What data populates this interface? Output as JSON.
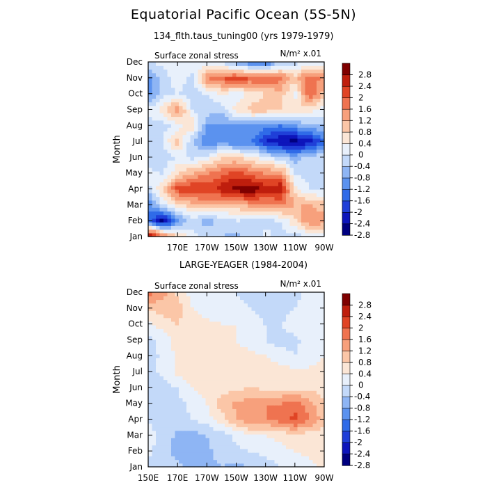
{
  "title": "Equatorial Pacific Ocean (5S-5N)",
  "panels": [
    {
      "subtitle": "134_flth.taus_tuning00 (yrs 1979-1979)",
      "left_label": "Surface zonal stress",
      "right_label": "N/m² x.01"
    },
    {
      "subtitle": "LARGE-YEAGER (1984-2004)",
      "left_label": "Surface zonal stress",
      "right_label": "N/m² x.01"
    }
  ],
  "chart_data": [
    {
      "type": "heatmap",
      "title": "134_flth.taus_tuning00 (yrs 1979-1979)",
      "variable": "Surface zonal stress",
      "units": "N/m² x.01",
      "ylabel": "Month",
      "x_ticks": [
        "",
        "170E",
        "170W",
        "150W",
        "130W",
        "110W",
        "90W"
      ],
      "x_range_lon": [
        150,
        270
      ],
      "y_ticks": [
        "Jan",
        "Feb",
        "Mar",
        "Apr",
        "May",
        "Jun",
        "Jul",
        "Aug",
        "Sep",
        "Oct",
        "Nov",
        "Dec"
      ],
      "colorbar_levels": [
        -2.8,
        -2.4,
        -2,
        -1.6,
        -1.2,
        -0.8,
        -0.4,
        0,
        0.4,
        0.8,
        1.2,
        1.6,
        2,
        2.4,
        2.8
      ],
      "colorbar_labels": [
        "2.8",
        "2.4",
        "2",
        "1.6",
        "1.2",
        "0.8",
        "0.4",
        "0",
        "-0.4",
        "-0.8",
        "-1.2",
        "-1.6",
        "-2",
        "-2.4",
        "-2.8"
      ],
      "lons": [
        150,
        160,
        170,
        180,
        190,
        200,
        210,
        220,
        230,
        240,
        250,
        260,
        270
      ],
      "grid": [
        [
          3.0,
          1.5,
          0.5,
          -0.2,
          -0.5,
          -0.8,
          -0.9,
          -0.6,
          -0.3,
          -0.5,
          -0.6,
          -0.4,
          -0.2
        ],
        [
          -1.8,
          -3.0,
          -1.4,
          -0.6,
          -1.0,
          -0.7,
          -0.4,
          -0.6,
          -0.5,
          -0.4,
          0.3,
          1.2,
          1.0
        ],
        [
          -1.6,
          -0.4,
          0.2,
          0.6,
          0.9,
          0.6,
          0.6,
          1.0,
          1.0,
          1.2,
          0.8,
          0.8,
          0.6
        ],
        [
          -0.6,
          0.4,
          1.8,
          2.0,
          1.8,
          2.2,
          2.6,
          2.8,
          2.2,
          2.4,
          0.2,
          -0.4,
          -0.4
        ],
        [
          -0.2,
          -0.5,
          0.4,
          0.8,
          1.2,
          1.5,
          1.8,
          1.4,
          1.2,
          1.2,
          -0.4,
          -0.6,
          -0.5
        ],
        [
          -0.8,
          -0.6,
          -0.4,
          -0.5,
          -0.3,
          0.4,
          0.4,
          0.2,
          -0.4,
          -0.6,
          -1.0,
          -0.6,
          -0.4
        ],
        [
          -0.8,
          -0.4,
          0.6,
          -0.8,
          -1.6,
          -1.4,
          -1.6,
          -1.5,
          -2.4,
          -2.8,
          -3.0,
          -2.6,
          -1.8
        ],
        [
          -0.6,
          -0.6,
          -0.2,
          0.4,
          -1.2,
          -1.4,
          -1.2,
          -1.2,
          -1.4,
          -1.6,
          -1.2,
          -1.0,
          -0.8
        ],
        [
          -0.3,
          0.2,
          1.2,
          -0.4,
          -0.6,
          -0.6,
          0.2,
          0.6,
          0.6,
          0.4,
          0.4,
          0.2,
          -0.2
        ],
        [
          -1.4,
          -0.6,
          -0.4,
          -0.6,
          -0.4,
          0.0,
          -0.2,
          0.0,
          0.4,
          0.6,
          -0.2,
          1.6,
          0.6
        ],
        [
          -1.4,
          -0.6,
          -0.2,
          -0.5,
          1.2,
          1.6,
          1.8,
          1.6,
          1.6,
          1.4,
          0.6,
          1.6,
          1.0
        ],
        [
          -0.4,
          -0.3,
          -0.2,
          -0.2,
          -0.4,
          -0.6,
          -1.2,
          -1.6,
          -1.8,
          -0.8,
          -0.6,
          -0.4,
          -0.2
        ]
      ]
    },
    {
      "type": "heatmap",
      "title": "LARGE-YEAGER (1984-2004)",
      "variable": "Surface zonal stress",
      "units": "N/m² x.01",
      "ylabel": "Month",
      "x_ticks": [
        "150E",
        "170E",
        "170W",
        "150W",
        "130W",
        "110W",
        "90W"
      ],
      "x_range_lon": [
        150,
        270
      ],
      "y_ticks": [
        "Jan",
        "Feb",
        "Mar",
        "Apr",
        "May",
        "Jun",
        "Jul",
        "Aug",
        "Sep",
        "Oct",
        "Nov",
        "Dec"
      ],
      "colorbar_levels": [
        -2.8,
        -2.4,
        -2,
        -1.6,
        -1.2,
        -0.8,
        -0.4,
        0,
        0.4,
        0.8,
        1.2,
        1.6,
        2,
        2.4,
        2.8
      ],
      "colorbar_labels": [
        "2.8",
        "2.4",
        "2",
        "1.6",
        "1.2",
        "0.8",
        "0.4",
        "0",
        "-0.4",
        "-0.8",
        "-1.2",
        "-1.6",
        "-2",
        "-2.4",
        "-2.8"
      ],
      "lons": [
        150,
        160,
        170,
        180,
        190,
        200,
        210,
        220,
        230,
        240,
        250,
        260,
        270
      ],
      "grid": [
        [
          -0.6,
          -0.8,
          -0.6,
          -1.0,
          -1.0,
          -0.8,
          -0.9,
          -0.8,
          -0.6,
          -0.4,
          -0.3,
          -0.1,
          0.1
        ],
        [
          -0.3,
          -0.6,
          -1.0,
          -1.2,
          -0.9,
          -0.6,
          -0.5,
          -0.4,
          -0.3,
          -0.1,
          0.0,
          0.1,
          0.1
        ],
        [
          -0.3,
          -0.5,
          -0.9,
          -1.0,
          -0.8,
          -0.6,
          -0.3,
          -0.1,
          0.0,
          0.1,
          0.2,
          0.2,
          0.2
        ],
        [
          -0.4,
          -0.6,
          -0.6,
          -0.4,
          -0.2,
          0.2,
          0.8,
          1.2,
          1.2,
          1.4,
          1.8,
          1.2,
          0.6
        ],
        [
          -0.5,
          -0.6,
          -0.5,
          -0.3,
          0.0,
          0.6,
          0.9,
          1.0,
          1.2,
          1.2,
          1.4,
          1.0,
          0.4
        ],
        [
          -0.6,
          -0.6,
          -0.4,
          0.0,
          0.2,
          0.2,
          0.3,
          0.4,
          0.3,
          0.3,
          0.3,
          0.3,
          0.2
        ],
        [
          -0.5,
          -0.3,
          0.1,
          0.2,
          0.3,
          0.3,
          0.3,
          0.3,
          0.2,
          0.2,
          0.1,
          0.1,
          0.1
        ],
        [
          -0.6,
          -0.3,
          0.1,
          0.2,
          0.2,
          0.2,
          0.2,
          0.1,
          0.0,
          -0.2,
          -0.4,
          -0.2,
          0.0
        ],
        [
          -0.5,
          -0.3,
          0.2,
          0.2,
          0.2,
          0.1,
          0.0,
          -0.2,
          -0.4,
          -0.6,
          -0.5,
          -0.2,
          0.0
        ],
        [
          -0.1,
          0.2,
          0.4,
          0.2,
          0.1,
          0.0,
          0.0,
          -0.2,
          -0.4,
          -0.4,
          -0.2,
          -0.1,
          0.0
        ],
        [
          0.4,
          0.6,
          0.6,
          0.0,
          -0.2,
          -0.2,
          -0.2,
          -0.4,
          -0.6,
          -0.6,
          -0.4,
          -0.2,
          0.0
        ],
        [
          1.4,
          1.0,
          0.3,
          -0.2,
          -0.4,
          -0.4,
          -0.4,
          -0.6,
          -0.8,
          -0.8,
          -0.5,
          -0.3,
          -0.1
        ]
      ]
    }
  ],
  "colors": {
    "palette": [
      "#000080",
      "#0d15bb",
      "#1f3fd8",
      "#2f6be8",
      "#5b92ef",
      "#8eb5f4",
      "#c3d9f9",
      "#e8f0fb",
      "#fbe6d6",
      "#fbc6a7",
      "#f7a07c",
      "#ef7350",
      "#e04425",
      "#bf1e0d",
      "#7f0000"
    ]
  }
}
